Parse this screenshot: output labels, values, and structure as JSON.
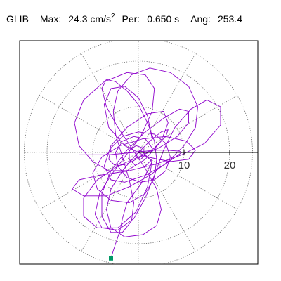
{
  "header": {
    "station": "GLIB",
    "max_label": "Max:",
    "max_value": "24.3",
    "max_unit": "cm/s",
    "max_unit_exp": "2",
    "period_label": "Per:",
    "period_value": "0.650 s",
    "angle_label": "Ang:",
    "angle_value": "253.4"
  },
  "chart_data": {
    "type": "polar-particle-motion",
    "station": "GLIB",
    "max_acceleration_cm_s2": 24.3,
    "period_s": 0.65,
    "angle_deg": 253.4,
    "unit": "cm/s^2",
    "rings": [
      10,
      20,
      25
    ],
    "ring_tick_labels": [
      "10",
      "20"
    ],
    "radial_gridline_step_deg": 30,
    "grid_style": "dotted",
    "trace_color": "#8e00cc",
    "marker_color": "#009966",
    "trace_points": [
      [
        -13.0,
        -0.5
      ],
      [
        -6.5,
        -0.5
      ],
      [
        -1.0,
        0.0
      ],
      [
        3.5,
        0.5
      ],
      [
        6.5,
        0.5
      ],
      [
        7.5,
        0.4
      ],
      [
        9.0,
        0.3
      ],
      [
        9.5,
        0.0
      ],
      [
        6.0,
        -2.5
      ],
      [
        1.5,
        -5.0
      ],
      [
        -3.0,
        -6.5
      ],
      [
        -6.0,
        -6.0
      ],
      [
        -7.5,
        -3.0
      ],
      [
        -6.0,
        1.5
      ],
      [
        -2.5,
        5.5
      ],
      [
        2.0,
        8.5
      ],
      [
        5.5,
        9.0
      ],
      [
        6.5,
        6.5
      ],
      [
        5.0,
        2.5
      ],
      [
        1.5,
        -1.5
      ],
      [
        -2.5,
        -4.0
      ],
      [
        -6.5,
        -4.0
      ],
      [
        -10.0,
        -2.0
      ],
      [
        -13.0,
        1.5
      ],
      [
        -14.0,
        6.5
      ],
      [
        -12.0,
        11.5
      ],
      [
        -7.5,
        15.5
      ],
      [
        -2.5,
        17.5
      ],
      [
        1.5,
        17.0
      ],
      [
        3.5,
        14.0
      ],
      [
        3.0,
        9.0
      ],
      [
        0.5,
        3.5
      ],
      [
        -3.0,
        -1.0
      ],
      [
        -6.0,
        -5.0
      ],
      [
        -8.5,
        -9.0
      ],
      [
        -9.5,
        -13.5
      ],
      [
        -8.0,
        -16.5
      ],
      [
        -4.5,
        -17.0
      ],
      [
        -1.0,
        -14.5
      ],
      [
        1.5,
        -10.0
      ],
      [
        3.5,
        -5.0
      ],
      [
        5.5,
        0.5
      ],
      [
        8.0,
        5.5
      ],
      [
        11.5,
        9.5
      ],
      [
        15.0,
        11.5
      ],
      [
        18.0,
        10.0
      ],
      [
        18.0,
        6.0
      ],
      [
        14.5,
        2.0
      ],
      [
        9.5,
        -0.5
      ],
      [
        4.0,
        -2.5
      ],
      [
        -2.0,
        -4.0
      ],
      [
        -8.5,
        -5.0
      ],
      [
        -13.0,
        -6.0
      ],
      [
        -14.5,
        -8.0
      ],
      [
        -12.0,
        -9.5
      ],
      [
        -7.0,
        -9.5
      ],
      [
        -2.0,
        -7.5
      ],
      [
        2.5,
        -5.0
      ],
      [
        6.5,
        -2.0
      ],
      [
        10.0,
        1.5
      ],
      [
        12.5,
        5.5
      ],
      [
        13.0,
        10.0
      ],
      [
        11.0,
        14.5
      ],
      [
        7.0,
        17.5
      ],
      [
        2.5,
        18.5
      ],
      [
        -1.5,
        17.0
      ],
      [
        -4.5,
        13.5
      ],
      [
        -5.5,
        9.0
      ],
      [
        -5.0,
        4.0
      ],
      [
        -3.5,
        -1.0
      ],
      [
        -2.0,
        -6.0
      ],
      [
        -1.0,
        -11.0
      ],
      [
        -1.5,
        -15.0
      ],
      [
        -3.5,
        -17.5
      ],
      [
        -6.0,
        -17.5
      ],
      [
        -8.0,
        -14.0
      ],
      [
        -8.0,
        -9.0
      ],
      [
        -6.0,
        -4.0
      ],
      [
        -2.5,
        0.5
      ],
      [
        1.5,
        4.5
      ],
      [
        5.5,
        7.5
      ],
      [
        9.0,
        9.5
      ],
      [
        11.0,
        9.0
      ],
      [
        11.0,
        6.5
      ],
      [
        8.5,
        3.5
      ],
      [
        4.5,
        1.0
      ],
      [
        0.0,
        -1.0
      ],
      [
        -4.5,
        -3.0
      ],
      [
        -9.0,
        -6.0
      ],
      [
        -12.0,
        -10.0
      ],
      [
        -12.0,
        -14.0
      ],
      [
        -9.0,
        -16.5
      ],
      [
        -4.5,
        -16.5
      ],
      [
        -0.5,
        -13.0
      ],
      [
        2.0,
        -7.5
      ],
      [
        3.0,
        -2.0
      ],
      [
        3.0,
        3.0
      ],
      [
        2.0,
        8.0
      ],
      [
        0.0,
        12.0
      ],
      [
        -3.0,
        14.5
      ],
      [
        -6.0,
        14.0
      ],
      [
        -7.5,
        10.5
      ],
      [
        -6.5,
        5.5
      ],
      [
        -3.0,
        1.5
      ],
      [
        2.0,
        -1.0
      ],
      [
        7.0,
        -2.0
      ],
      [
        11.0,
        -1.5
      ],
      [
        12.5,
        0.5
      ],
      [
        10.5,
        2.5
      ],
      [
        6.0,
        3.5
      ],
      [
        1.0,
        3.0
      ],
      [
        -4.0,
        1.5
      ],
      [
        -8.0,
        -1.0
      ],
      [
        -10.0,
        -4.5
      ],
      [
        -9.0,
        -8.0
      ],
      [
        -6.0,
        -10.5
      ],
      [
        -2.0,
        -11.0
      ],
      [
        1.5,
        -9.0
      ],
      [
        3.5,
        -5.5
      ],
      [
        4.0,
        -1.5
      ],
      [
        3.5,
        2.5
      ],
      [
        2.0,
        6.5
      ],
      [
        0.0,
        10.5
      ],
      [
        -2.5,
        13.5
      ],
      [
        -5.0,
        15.5
      ],
      [
        -7.0,
        16.0
      ],
      [
        -8.0,
        14.0
      ],
      [
        -7.0,
        10.0
      ],
      [
        -4.5,
        5.5
      ],
      [
        -1.5,
        1.0
      ],
      [
        1.5,
        -3.5
      ],
      [
        4.0,
        -8.0
      ],
      [
        5.0,
        -12.5
      ],
      [
        4.0,
        -16.0
      ],
      [
        1.0,
        -18.0
      ],
      [
        -3.0,
        -18.5
      ],
      [
        -6.0,
        -16.5
      ],
      [
        -7.0,
        -12.5
      ],
      [
        -6.0,
        -8.0
      ],
      [
        -3.5,
        -4.0
      ],
      [
        -0.5,
        -0.5
      ],
      [
        2.5,
        2.5
      ],
      [
        5.0,
        4.5
      ],
      [
        6.5,
        5.0
      ],
      [
        6.0,
        3.5
      ],
      [
        3.5,
        1.0
      ],
      [
        0.5,
        -1.0
      ],
      [
        -2.5,
        -2.5
      ],
      [
        -5.0,
        -3.0
      ],
      [
        -6.5,
        -1.5
      ],
      [
        -6.0,
        1.0
      ],
      [
        -3.5,
        3.5
      ],
      [
        0.0,
        4.5
      ],
      [
        3.5,
        4.0
      ],
      [
        6.0,
        2.0
      ],
      [
        7.0,
        -1.0
      ],
      [
        6.0,
        -4.0
      ],
      [
        3.5,
        -6.0
      ],
      [
        0.5,
        -6.5
      ],
      [
        -2.5,
        -5.5
      ],
      [
        -4.5,
        -3.0
      ],
      [
        -5.0,
        0.0
      ],
      [
        -3.5,
        2.5
      ],
      [
        -1.0,
        3.5
      ],
      [
        1.5,
        3.0
      ],
      [
        3.0,
        1.0
      ],
      [
        3.0,
        -1.5
      ],
      [
        1.5,
        -3.0
      ],
      [
        -0.5,
        -3.0
      ],
      [
        -2.0,
        -1.5
      ],
      [
        -2.0,
        0.5
      ],
      [
        -0.5,
        1.5
      ],
      [
        1.0,
        1.0
      ],
      [
        1.5,
        -0.5
      ],
      [
        0.5,
        -1.5
      ],
      [
        -0.5,
        -1.0
      ],
      [
        -0.5,
        0.0
      ],
      [
        0.5,
        0.5
      ],
      [
        3.0,
        -2.0
      ],
      [
        0.5,
        -7.0
      ],
      [
        -2.5,
        -11.0
      ],
      [
        -3.5,
        -14.5
      ],
      [
        -4.0,
        -17.0
      ],
      [
        -4.5,
        -18.5
      ],
      [
        -5.0,
        -20.0
      ],
      [
        -5.5,
        -21.5
      ],
      [
        -6.0,
        -23.2
      ]
    ],
    "end_marker": [
      -6.0,
      -23.2
    ]
  }
}
